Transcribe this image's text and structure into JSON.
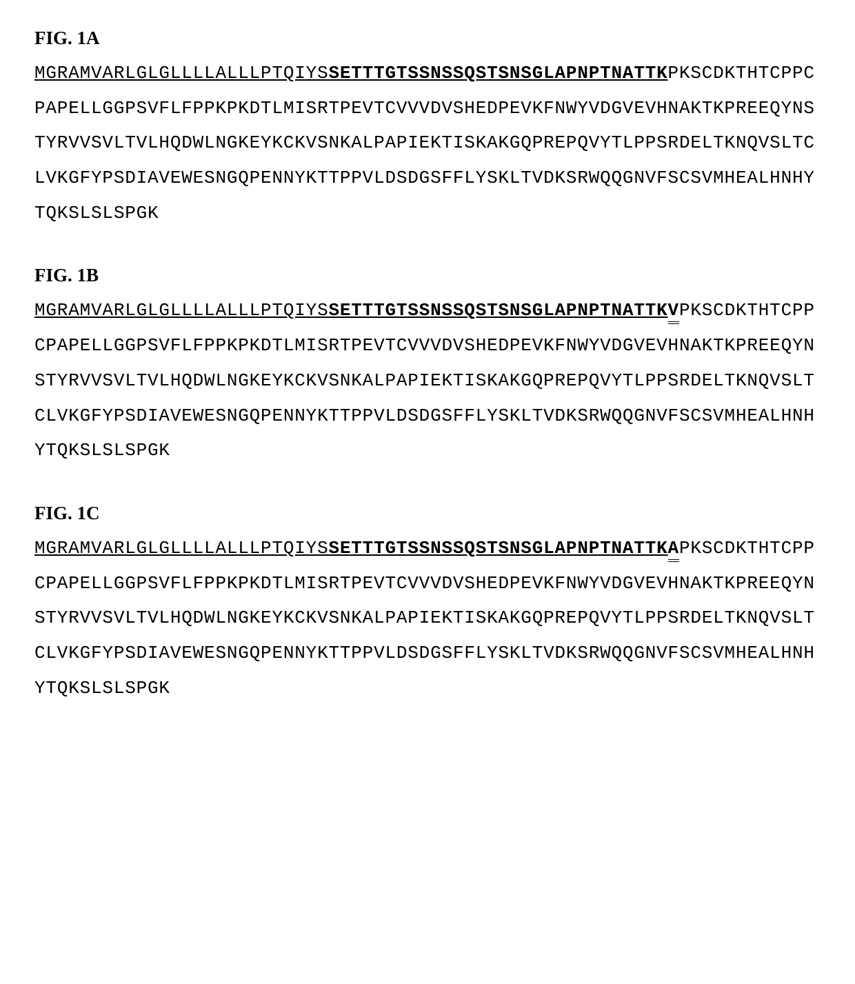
{
  "background_color": "#ffffff",
  "text_color": "#000000",
  "figure_label_font": {
    "family": "Times New Roman",
    "size_pt": 20,
    "weight": "bold"
  },
  "sequence_font": {
    "family": "Courier New",
    "size_pt": 20,
    "weight": "normal",
    "line_height": 1.95
  },
  "figures": [
    {
      "label": "FIG. 1A",
      "segments": [
        {
          "text": "MGRAMVARLGLGLLLLALLLPTQIYS",
          "style": "underline"
        },
        {
          "text": "SETTTGTSSNSSQSTSNSGLAPNPTNATTK",
          "style": "bold-underline"
        },
        {
          "text": "PKSCDKTHTCPPCPAPELLGGPSVFLFPPKPKDTLMISRTPEVTCVVVDVSHEDPEVKFNWYVDGVEVHNAKTKPREEQYNSTYRVVSVLTVLHQDWLNGKEYKCKVSNKALPAPIEKTISKAKGQPREPQVYTLPPSRDELTKNQVSLTCLVKGFYPSDIAVEWESNGQPENNYKTTPPVLDSDGSFFLYSKLTVDKSRWQQGNVFSCSVMHEALHNHYTQKSLSLSPGK",
          "style": "plain"
        }
      ]
    },
    {
      "label": "FIG. 1B",
      "segments": [
        {
          "text": "MGRAMVARLGLGLLLLALLLPTQIYS",
          "style": "underline"
        },
        {
          "text": "SETTTGTSSNSSQSTSNSGLAPNPTNATTK",
          "style": "bold-underline"
        },
        {
          "text": "V",
          "style": "double-underline"
        },
        {
          "text": "PKSCDKTHTCPPCPAPELLGGPSVFLFPPKPKDTLMISRTPEVTCVVVDVSHEDPEVKFNWYVDGVEVHNAKTKPREEQYNSTYRVVSVLTVLHQDWLNGKEYKCKVSNKALPAPIEKTISKAKGQPREPQVYTLPPSRDELTKNQVSLTCLVKGFYPSDIAVEWESNGQPENNYKTTPPVLDSDGSFFLYSKLTVDKSRWQQGNVFSCSVMHEALHNHYTQKSLSLSPGK",
          "style": "plain"
        }
      ]
    },
    {
      "label": "FIG. 1C",
      "segments": [
        {
          "text": "MGRAMVARLGLGLLLLALLLPTQIYS",
          "style": "underline"
        },
        {
          "text": "SETTTGTSSNSSQSTSNSGLAPNPTNATTK",
          "style": "bold-underline"
        },
        {
          "text": "A",
          "style": "double-underline"
        },
        {
          "text": "PKSCDKTHTCPPCPAPELLGGPSVFLFPPKPKDTLMISRTPEVTCVVVDVSHEDPEVKFNWYVDGVEVHNAKTKPREEQYNSTYRVVSVLTVLHQDWLNGKEYKCKVSNKALPAPIEKTISKAKGQPREPQVYTLPPSRDELTKNQVSLTCLVKGFYPSDIAVEWESNGQPENNYKTTPPVLDSDGSFFLYSKLTVDKSRWQQGNVFSCSVMHEALHNHYTQKSLSLSPGK",
          "style": "plain"
        }
      ]
    }
  ]
}
